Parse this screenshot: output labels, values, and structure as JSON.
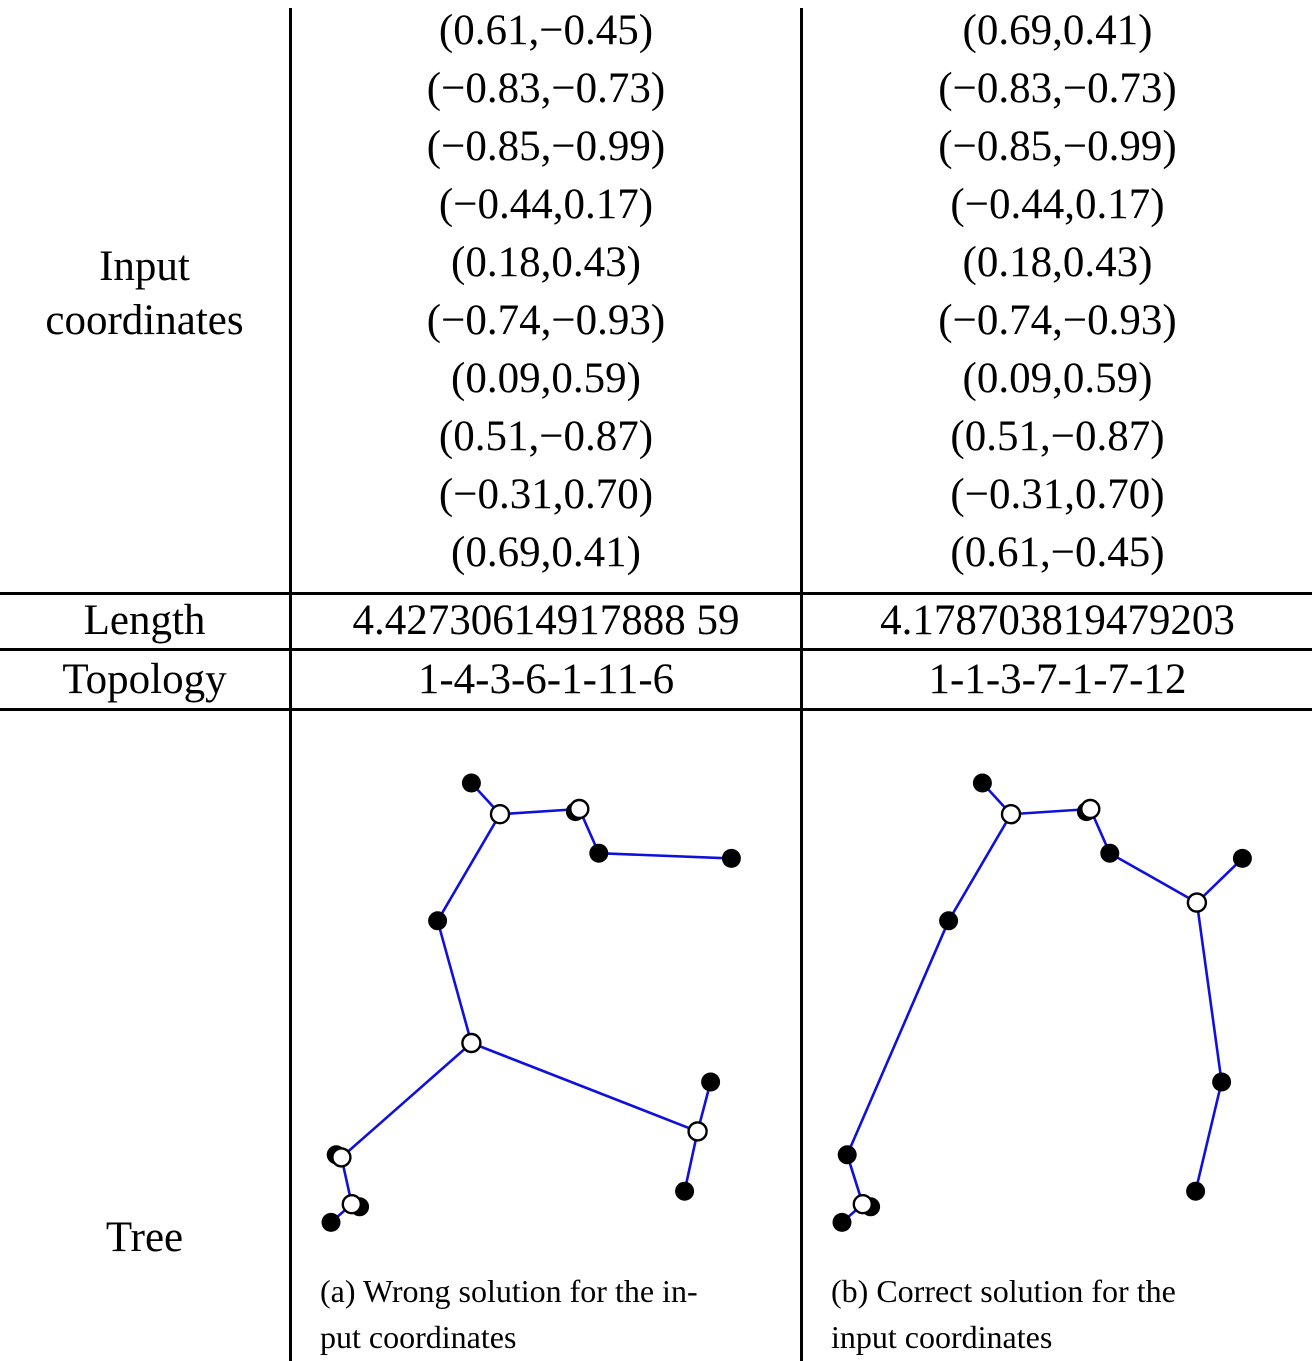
{
  "row_labels": {
    "input_line1": "Input",
    "input_line2": "coordinates",
    "length": "Length",
    "topology": "Topology",
    "tree": "Tree"
  },
  "columns": [
    {
      "coordinates": [
        "(0.61,−0.45)",
        "(−0.83,−0.73)",
        "(−0.85,−0.99)",
        "(−0.44,0.17)",
        "(0.18,0.43)",
        "(−0.74,−0.93)",
        "(0.09,0.59)",
        "(0.51,−0.87)",
        "(−0.31,0.70)",
        "(0.69,0.41)"
      ],
      "length": "4.42730614917888 59",
      "topology": "1-4-3-6-1-11-6",
      "caption_line1": "(a) Wrong solution for the in-",
      "caption_line2": "put coordinates"
    },
    {
      "coordinates": [
        "(0.69,0.41)",
        "(−0.83,−0.73)",
        "(−0.85,−0.99)",
        "(−0.44,0.17)",
        "(0.18,0.43)",
        "(−0.74,−0.93)",
        "(0.09,0.59)",
        "(0.51,−0.87)",
        "(−0.31,0.70)",
        "(0.61,−0.45)"
      ],
      "length": "4.178703819479203",
      "topology": "1-1-3-7-1-7-12",
      "caption_line1": "(b) Correct solution for the",
      "caption_line2": "input coordinates"
    }
  ],
  "trees": [
    {
      "terminals": [
        [
          -0.31,
          0.7
        ],
        [
          0.09,
          0.59
        ],
        [
          0.18,
          0.43
        ],
        [
          0.69,
          0.41
        ],
        [
          -0.44,
          0.17
        ],
        [
          0.61,
          -0.45
        ],
        [
          0.51,
          -0.87
        ],
        [
          -0.83,
          -0.73
        ],
        [
          -0.74,
          -0.93
        ],
        [
          -0.85,
          -0.99
        ]
      ],
      "steiner": [
        [
          -0.2,
          0.58
        ],
        [
          0.105,
          0.6
        ],
        [
          -0.31,
          -0.3
        ],
        [
          0.56,
          -0.64
        ],
        [
          -0.81,
          -0.74
        ],
        [
          -0.77,
          -0.92
        ]
      ],
      "edges": [
        [
          [
            -0.31,
            0.7
          ],
          [
            -0.2,
            0.58
          ]
        ],
        [
          [
            -0.2,
            0.58
          ],
          [
            0.105,
            0.6
          ]
        ],
        [
          [
            0.105,
            0.6
          ],
          [
            0.18,
            0.43
          ]
        ],
        [
          [
            0.18,
            0.43
          ],
          [
            0.69,
            0.41
          ]
        ],
        [
          [
            -0.2,
            0.58
          ],
          [
            -0.44,
            0.17
          ]
        ],
        [
          [
            -0.44,
            0.17
          ],
          [
            -0.31,
            -0.3
          ]
        ],
        [
          [
            -0.31,
            -0.3
          ],
          [
            0.56,
            -0.64
          ]
        ],
        [
          [
            0.56,
            -0.64
          ],
          [
            0.61,
            -0.45
          ]
        ],
        [
          [
            0.56,
            -0.64
          ],
          [
            0.51,
            -0.87
          ]
        ],
        [
          [
            -0.31,
            -0.3
          ],
          [
            -0.81,
            -0.74
          ]
        ],
        [
          [
            -0.81,
            -0.74
          ],
          [
            -0.77,
            -0.92
          ]
        ],
        [
          [
            -0.77,
            -0.92
          ],
          [
            -0.85,
            -0.99
          ]
        ]
      ],
      "edge_color": "#1010dd"
    },
    {
      "terminals": [
        [
          -0.31,
          0.7
        ],
        [
          0.09,
          0.59
        ],
        [
          0.18,
          0.43
        ],
        [
          0.69,
          0.41
        ],
        [
          -0.44,
          0.17
        ],
        [
          0.61,
          -0.45
        ],
        [
          0.51,
          -0.87
        ],
        [
          -0.83,
          -0.73
        ],
        [
          -0.74,
          -0.93
        ],
        [
          -0.85,
          -0.99
        ]
      ],
      "steiner": [
        [
          -0.2,
          0.58
        ],
        [
          0.105,
          0.6
        ],
        [
          0.515,
          0.24
        ],
        [
          -0.77,
          -0.92
        ]
      ],
      "edges": [
        [
          [
            -0.31,
            0.7
          ],
          [
            -0.2,
            0.58
          ]
        ],
        [
          [
            -0.2,
            0.58
          ],
          [
            0.105,
            0.6
          ]
        ],
        [
          [
            0.105,
            0.6
          ],
          [
            0.18,
            0.43
          ]
        ],
        [
          [
            0.18,
            0.43
          ],
          [
            0.515,
            0.24
          ]
        ],
        [
          [
            0.515,
            0.24
          ],
          [
            0.69,
            0.41
          ]
        ],
        [
          [
            0.515,
            0.24
          ],
          [
            0.61,
            -0.45
          ]
        ],
        [
          [
            0.61,
            -0.45
          ],
          [
            0.51,
            -0.87
          ]
        ],
        [
          [
            -0.2,
            0.58
          ],
          [
            -0.44,
            0.17
          ]
        ],
        [
          [
            -0.44,
            0.17
          ],
          [
            -0.83,
            -0.73
          ]
        ],
        [
          [
            -0.83,
            -0.73
          ],
          [
            -0.77,
            -0.92
          ]
        ],
        [
          [
            -0.77,
            -0.92
          ],
          [
            -0.85,
            -0.99
          ]
        ]
      ],
      "edge_color": "#1010dd"
    }
  ]
}
